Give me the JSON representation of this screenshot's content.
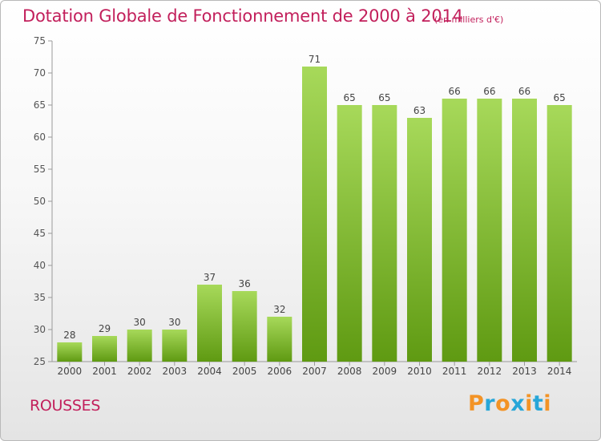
{
  "header": {
    "title": "Dotation Globale de Fonctionnement de 2000 à 2014",
    "unit": "(en milliers d'€)"
  },
  "footer": {
    "commune": "ROUSSES",
    "logo_text": "Proxiti"
  },
  "colors": {
    "title": "#c21f5b",
    "bar_light": "#a7d95a",
    "bar_dark": "#5f9a12",
    "logo_letters": [
      "#f39325",
      "#27a6d8",
      "#f39325",
      "#27a6d8",
      "#f39325",
      "#27a6d8",
      "#f39325"
    ]
  },
  "chart_data": {
    "type": "bar",
    "title": "Dotation Globale de Fonctionnement de 2000 à 2014",
    "subtitle": "(en milliers d'€)",
    "categories": [
      "2000",
      "2001",
      "2002",
      "2003",
      "2004",
      "2005",
      "2006",
      "2007",
      "2008",
      "2009",
      "2010",
      "2011",
      "2012",
      "2013",
      "2014"
    ],
    "values": [
      28,
      29,
      30,
      30,
      37,
      36,
      32,
      71,
      65,
      65,
      63,
      66,
      66,
      66,
      65
    ],
    "ylim": [
      25,
      75
    ],
    "yticks": [
      25,
      30,
      35,
      40,
      45,
      50,
      55,
      60,
      65,
      70,
      75
    ],
    "grid": false,
    "xlabel": "",
    "ylabel": ""
  }
}
